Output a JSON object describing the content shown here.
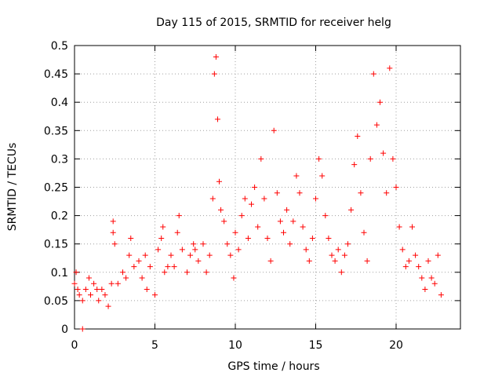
{
  "chart_data": {
    "type": "scatter",
    "title": "Day 115 of 2015, SRMTID for receiver helg",
    "xlabel": "GPS time / hours",
    "ylabel": "SRMTID / TECUs",
    "xlim": [
      0,
      24
    ],
    "ylim": [
      0,
      0.5
    ],
    "xticks": [
      0,
      5,
      10,
      15,
      20
    ],
    "xtick_labels": [
      "0",
      "5",
      "10",
      "15",
      "20"
    ],
    "yticks": [
      0,
      0.05,
      0.1,
      0.15,
      0.2,
      0.25,
      0.3,
      0.35,
      0.4,
      0.45,
      0.5
    ],
    "ytick_labels": [
      "0",
      "0.05",
      "0.1",
      "0.15",
      "0.2",
      "0.25",
      "0.3",
      "0.35",
      "0.4",
      "0.45",
      "0.5"
    ],
    "grid": true,
    "marker": "plus",
    "color": "#ff0000",
    "series": [
      {
        "points": [
          [
            0.0,
            0.08
          ],
          [
            0.1,
            0.1
          ],
          [
            0.2,
            0.07
          ],
          [
            0.3,
            0.06
          ],
          [
            0.5,
            0.05
          ],
          [
            0.5,
            0.0
          ],
          [
            0.7,
            0.07
          ],
          [
            0.9,
            0.09
          ],
          [
            1.0,
            0.06
          ],
          [
            1.2,
            0.08
          ],
          [
            1.4,
            0.07
          ],
          [
            1.5,
            0.05
          ],
          [
            1.7,
            0.07
          ],
          [
            1.9,
            0.06
          ],
          [
            2.1,
            0.04
          ],
          [
            2.3,
            0.08
          ],
          [
            2.4,
            0.19
          ],
          [
            2.4,
            0.17
          ],
          [
            2.5,
            0.15
          ],
          [
            2.7,
            0.08
          ],
          [
            3.0,
            0.1
          ],
          [
            3.2,
            0.09
          ],
          [
            3.4,
            0.13
          ],
          [
            3.5,
            0.16
          ],
          [
            3.7,
            0.11
          ],
          [
            4.0,
            0.12
          ],
          [
            4.2,
            0.09
          ],
          [
            4.4,
            0.13
          ],
          [
            4.5,
            0.07
          ],
          [
            4.7,
            0.11
          ],
          [
            5.0,
            0.06
          ],
          [
            5.2,
            0.14
          ],
          [
            5.4,
            0.16
          ],
          [
            5.5,
            0.18
          ],
          [
            5.6,
            0.1
          ],
          [
            5.8,
            0.11
          ],
          [
            6.0,
            0.13
          ],
          [
            6.2,
            0.11
          ],
          [
            6.4,
            0.17
          ],
          [
            6.5,
            0.2
          ],
          [
            6.7,
            0.14
          ],
          [
            7.0,
            0.1
          ],
          [
            7.2,
            0.13
          ],
          [
            7.4,
            0.15
          ],
          [
            7.5,
            0.14
          ],
          [
            7.7,
            0.12
          ],
          [
            8.0,
            0.15
          ],
          [
            8.2,
            0.1
          ],
          [
            8.4,
            0.13
          ],
          [
            8.6,
            0.23
          ],
          [
            8.7,
            0.45
          ],
          [
            8.8,
            0.48
          ],
          [
            8.9,
            0.37
          ],
          [
            9.0,
            0.26
          ],
          [
            9.1,
            0.21
          ],
          [
            9.3,
            0.19
          ],
          [
            9.5,
            0.15
          ],
          [
            9.7,
            0.13
          ],
          [
            9.9,
            0.09
          ],
          [
            10.0,
            0.17
          ],
          [
            10.2,
            0.14
          ],
          [
            10.4,
            0.2
          ],
          [
            10.6,
            0.23
          ],
          [
            10.8,
            0.16
          ],
          [
            11.0,
            0.22
          ],
          [
            11.2,
            0.25
          ],
          [
            11.4,
            0.18
          ],
          [
            11.6,
            0.3
          ],
          [
            11.8,
            0.23
          ],
          [
            12.0,
            0.16
          ],
          [
            12.2,
            0.12
          ],
          [
            12.4,
            0.35
          ],
          [
            12.6,
            0.24
          ],
          [
            12.8,
            0.19
          ],
          [
            13.0,
            0.17
          ],
          [
            13.2,
            0.21
          ],
          [
            13.4,
            0.15
          ],
          [
            13.6,
            0.19
          ],
          [
            13.8,
            0.27
          ],
          [
            14.0,
            0.24
          ],
          [
            14.2,
            0.18
          ],
          [
            14.4,
            0.14
          ],
          [
            14.6,
            0.12
          ],
          [
            14.8,
            0.16
          ],
          [
            15.0,
            0.23
          ],
          [
            15.2,
            0.3
          ],
          [
            15.4,
            0.27
          ],
          [
            15.6,
            0.2
          ],
          [
            15.8,
            0.16
          ],
          [
            16.0,
            0.13
          ],
          [
            16.2,
            0.12
          ],
          [
            16.4,
            0.14
          ],
          [
            16.6,
            0.1
          ],
          [
            16.8,
            0.13
          ],
          [
            17.0,
            0.15
          ],
          [
            17.2,
            0.21
          ],
          [
            17.4,
            0.29
          ],
          [
            17.6,
            0.34
          ],
          [
            17.8,
            0.24
          ],
          [
            18.0,
            0.17
          ],
          [
            18.2,
            0.12
          ],
          [
            18.4,
            0.3
          ],
          [
            18.6,
            0.45
          ],
          [
            18.8,
            0.36
          ],
          [
            19.0,
            0.4
          ],
          [
            19.2,
            0.31
          ],
          [
            19.4,
            0.24
          ],
          [
            19.6,
            0.46
          ],
          [
            19.8,
            0.3
          ],
          [
            20.0,
            0.25
          ],
          [
            20.2,
            0.18
          ],
          [
            20.4,
            0.14
          ],
          [
            20.6,
            0.11
          ],
          [
            20.8,
            0.12
          ],
          [
            21.0,
            0.18
          ],
          [
            21.2,
            0.13
          ],
          [
            21.4,
            0.11
          ],
          [
            21.6,
            0.09
          ],
          [
            21.8,
            0.07
          ],
          [
            22.0,
            0.12
          ],
          [
            22.2,
            0.09
          ],
          [
            22.4,
            0.08
          ],
          [
            22.6,
            0.13
          ],
          [
            22.8,
            0.06
          ]
        ]
      }
    ]
  }
}
